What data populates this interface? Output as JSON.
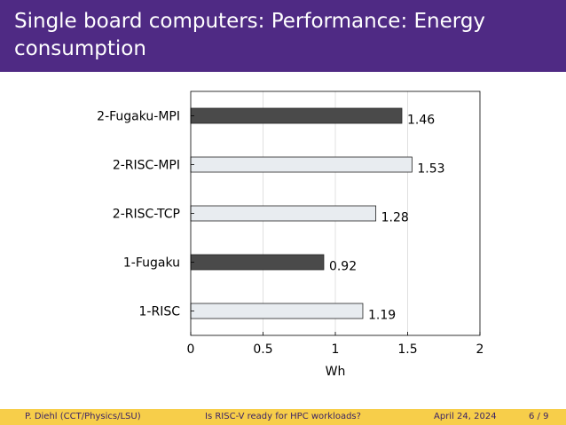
{
  "header": {
    "title": "Single board computers: Performance: Energy consumption"
  },
  "chart_data": {
    "type": "bar",
    "orientation": "horizontal",
    "title": "",
    "xlabel": "Wh",
    "ylabel": "",
    "xlim": [
      0,
      2
    ],
    "xticks": [
      "0",
      "0.5",
      "1",
      "1.5",
      "2"
    ],
    "grid": true,
    "categories": [
      "2-Fugaku-MPI",
      "2-RISC-MPI",
      "2-RISC-TCP",
      "1-Fugaku",
      "1-RISC"
    ],
    "values": [
      1.46,
      1.53,
      1.28,
      0.92,
      1.19
    ],
    "value_labels": [
      "1.46",
      "1.53",
      "1.28",
      "0.92",
      "1.19"
    ],
    "bar_colors": [
      "#4a4a4a",
      "#e8ecf0",
      "#e8ecf0",
      "#4a4a4a",
      "#e8ecf0"
    ]
  },
  "footer": {
    "author": "P. Diehl  (CCT/Physics/LSU)",
    "talk_title": "Is RISC-V ready for HPC workloads?",
    "date": "April 24, 2024",
    "page": "6 / 9"
  },
  "colors": {
    "header_bg": "#4f2a84",
    "footer_bg": "#f7ce4a"
  }
}
